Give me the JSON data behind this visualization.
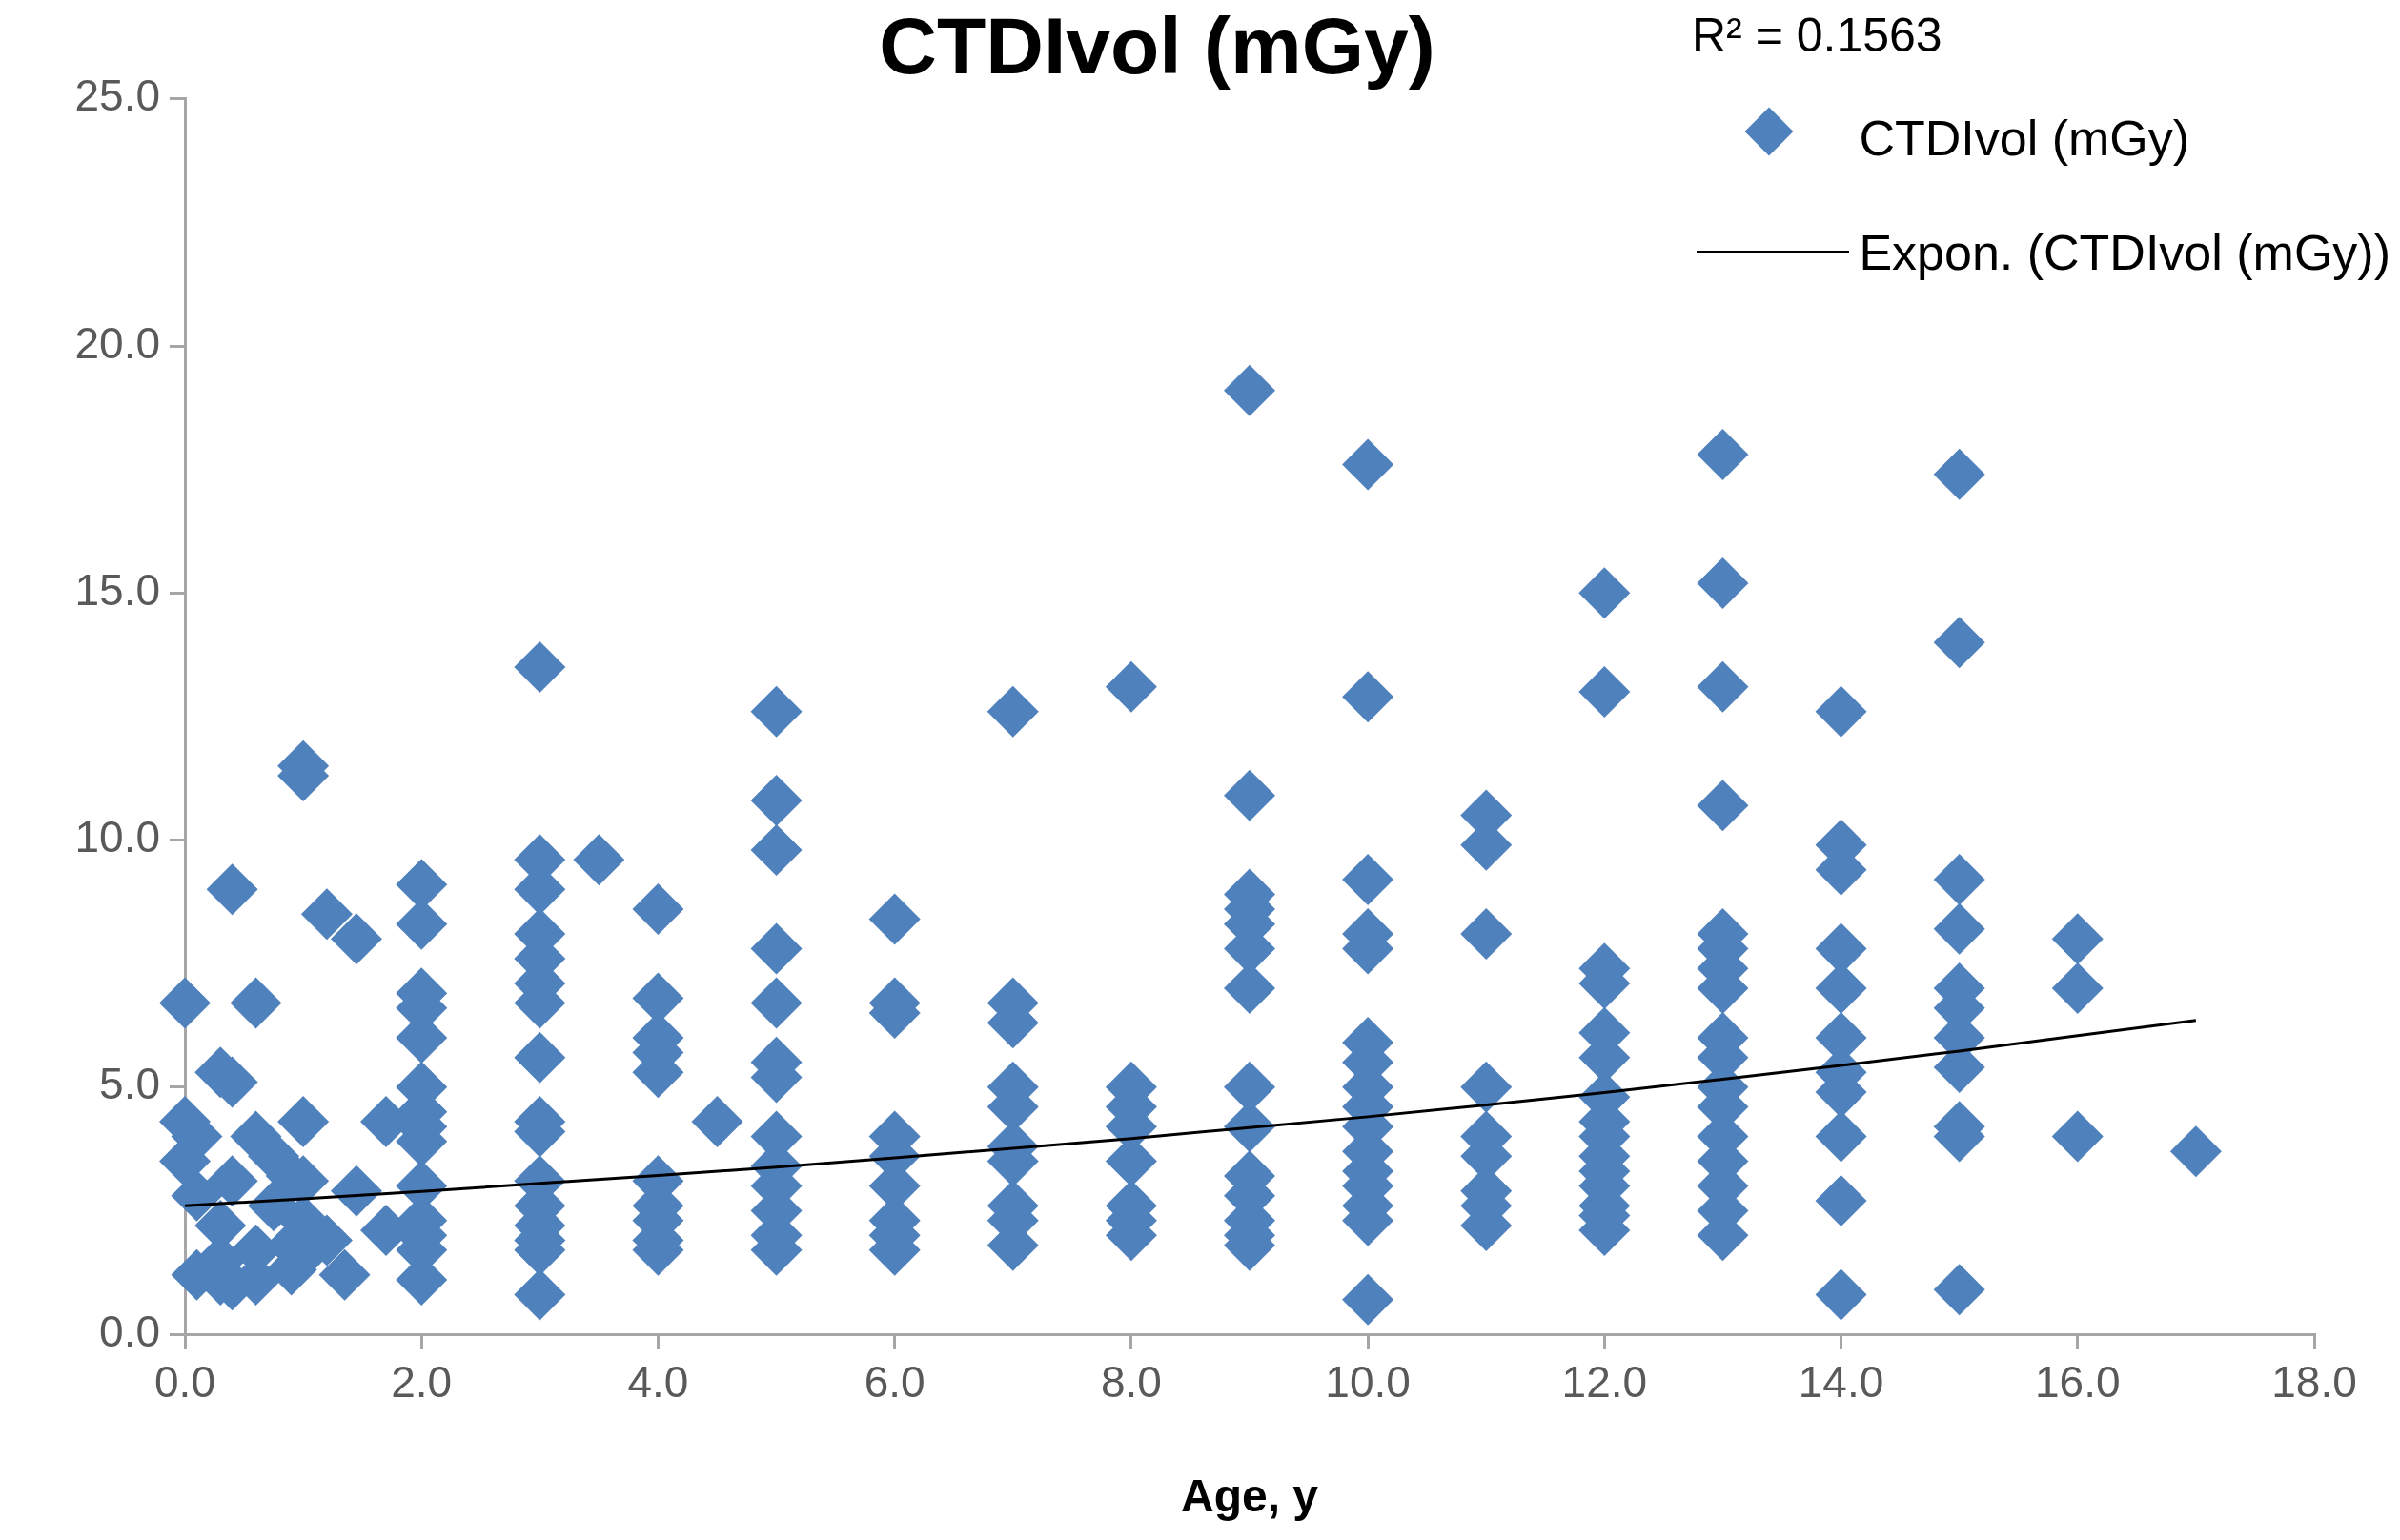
{
  "chart_data": {
    "type": "scatter",
    "title": "CTDIvol (mGy)",
    "xlabel": "Age, y",
    "xlim": [
      0,
      18
    ],
    "xticks": [
      {
        "value": 0,
        "label": "0.0"
      },
      {
        "value": 2,
        "label": "2.0"
      },
      {
        "value": 4,
        "label": "4.0"
      },
      {
        "value": 6,
        "label": "6.0"
      },
      {
        "value": 8,
        "label": "8.0"
      },
      {
        "value": 10,
        "label": "10.0"
      },
      {
        "value": 12,
        "label": "12.0"
      },
      {
        "value": 14,
        "label": "14.0"
      },
      {
        "value": 16,
        "label": "16.0"
      },
      {
        "value": 18,
        "label": "18.0"
      }
    ],
    "ylim": [
      0,
      25
    ],
    "yticks": [
      {
        "value": 0,
        "label": "0.0"
      },
      {
        "value": 5,
        "label": "5.0"
      },
      {
        "value": 10,
        "label": "10.0"
      },
      {
        "value": 15,
        "label": "15.0"
      },
      {
        "value": 20,
        "label": "20.0"
      },
      {
        "value": 25,
        "label": "25.0"
      }
    ],
    "grid": false,
    "legend": "top right",
    "annotations": [
      "R² = 0.1563"
    ],
    "series": [
      {
        "name": "CTDIvol (mGy)",
        "type": "scatter",
        "marker": "diamond",
        "color": "#4f81bd",
        "x": [
          0,
          0,
          0,
          0.1,
          0.1,
          0.1,
          0.3,
          0.3,
          0.3,
          0.3,
          0.4,
          0.4,
          0.4,
          0.4,
          0.6,
          0.6,
          0.6,
          0.6,
          0.75,
          0.75,
          0.9,
          0.9,
          0.9,
          1,
          1,
          1,
          1,
          1,
          1,
          1.2,
          1.2,
          1.35,
          1.45,
          1.45,
          1.7,
          1.7,
          2,
          2,
          2,
          2,
          2,
          2,
          2,
          2,
          2,
          2,
          2,
          2,
          2,
          2,
          3,
          3,
          3,
          3,
          3,
          3,
          3,
          3,
          3,
          3,
          3,
          3,
          3,
          3,
          3,
          3,
          3.5,
          4,
          4,
          4,
          4,
          4,
          4,
          4,
          4,
          4,
          4,
          4.5,
          5,
          5,
          5,
          5,
          5,
          5,
          5,
          5,
          5,
          5,
          5,
          5,
          5,
          6,
          6,
          6,
          6,
          6,
          6,
          6,
          6,
          6,
          7,
          7,
          7,
          7,
          7,
          7,
          7,
          7,
          7,
          7,
          8,
          8,
          8,
          8,
          8,
          8,
          8,
          8,
          9,
          9,
          9,
          9,
          9,
          9,
          9,
          9,
          9,
          9,
          9,
          9,
          9,
          9,
          10,
          10,
          10,
          10,
          10,
          10,
          10,
          10,
          10,
          10,
          10,
          10,
          10,
          10,
          10,
          10,
          11,
          11,
          11,
          11,
          11,
          11,
          11,
          11,
          11,
          12,
          12,
          12,
          12,
          12,
          12,
          12,
          12,
          12,
          12,
          12,
          12,
          12,
          12,
          12,
          13,
          13,
          13,
          13,
          13,
          13,
          13,
          13,
          13,
          13,
          13,
          13,
          13,
          13,
          13,
          13,
          13,
          14,
          14,
          14,
          14,
          14,
          14,
          14,
          14,
          14,
          14,
          14,
          15,
          15,
          15,
          15,
          15,
          15,
          15,
          15,
          15,
          15,
          15,
          16,
          16,
          16,
          17
        ],
        "values": [
          6.7,
          4.3,
          3.5,
          4.0,
          2.8,
          1.2,
          5.3,
          2.2,
          1.5,
          1.1,
          9.0,
          5.1,
          3.1,
          1.0,
          6.7,
          4.0,
          1.7,
          1.1,
          3.6,
          2.6,
          3.2,
          1.8,
          1.3,
          11.5,
          11.3,
          4.3,
          3.1,
          2.3,
          1.6,
          8.5,
          1.9,
          1.2,
          8.0,
          2.9,
          4.3,
          2.1,
          9.1,
          8.3,
          6.9,
          6.6,
          6.0,
          5.0,
          4.5,
          4.2,
          3.9,
          3.0,
          2.3,
          2.0,
          1.7,
          1.1,
          13.5,
          9.6,
          9.0,
          8.1,
          7.6,
          7.1,
          6.7,
          5.6,
          4.3,
          4.1,
          3.1,
          2.6,
          2.2,
          1.9,
          1.7,
          0.8,
          9.6,
          8.6,
          6.8,
          6.0,
          5.7,
          5.3,
          3.1,
          2.6,
          2.3,
          1.9,
          1.7,
          4.3,
          12.6,
          10.8,
          9.8,
          7.8,
          6.7,
          5.5,
          5.2,
          4.0,
          3.4,
          3.0,
          2.5,
          2.0,
          1.7,
          8.4,
          6.7,
          6.5,
          4.0,
          3.6,
          3.0,
          2.3,
          2.0,
          1.7,
          12.6,
          6.7,
          6.3,
          5.0,
          4.6,
          3.8,
          3.5,
          2.6,
          2.3,
          1.8,
          13.1,
          5.0,
          4.6,
          4.2,
          3.5,
          2.6,
          2.3,
          2.0,
          19.1,
          10.9,
          8.9,
          8.6,
          8.3,
          7.8,
          7.0,
          5.0,
          4.2,
          3.2,
          2.8,
          2.3,
          2.0,
          1.8,
          17.6,
          12.9,
          9.2,
          8.1,
          7.8,
          5.9,
          5.5,
          5.0,
          4.6,
          4.2,
          3.7,
          3.3,
          3.0,
          2.6,
          2.3,
          0.7,
          10.5,
          9.9,
          8.1,
          5.0,
          4.0,
          3.6,
          2.9,
          2.6,
          2.2,
          15.0,
          13.0,
          7.4,
          7.1,
          6.1,
          5.6,
          4.8,
          4.3,
          4.0,
          3.6,
          3.3,
          3.0,
          2.6,
          2.4,
          2.1,
          17.8,
          15.2,
          13.1,
          10.7,
          8.1,
          7.8,
          7.4,
          7.0,
          6.0,
          5.6,
          5.0,
          4.6,
          4.0,
          3.5,
          3.0,
          2.5,
          2.0,
          12.6,
          9.9,
          9.4,
          7.8,
          7.0,
          6.0,
          5.3,
          4.9,
          4.0,
          2.7,
          0.8,
          17.4,
          14.0,
          9.2,
          8.2,
          7.0,
          6.6,
          6.0,
          5.4,
          4.2,
          4.0,
          0.9,
          8.0,
          7.0,
          4.0,
          3.7
        ]
      },
      {
        "name": "Expon. (CTDIvol (mGy))",
        "type": "line",
        "marker": "none",
        "line_style": "solid",
        "color": "#000000",
        "x": [
          0,
          1,
          2,
          3,
          4,
          5,
          6,
          7,
          8,
          9,
          10,
          11,
          12,
          13,
          14,
          15,
          16,
          17
        ],
        "values": [
          2.6,
          2.74,
          2.89,
          3.05,
          3.21,
          3.38,
          3.57,
          3.76,
          3.96,
          4.18,
          4.4,
          4.64,
          4.89,
          5.16,
          5.44,
          5.73,
          6.04,
          6.35
        ]
      }
    ]
  }
}
